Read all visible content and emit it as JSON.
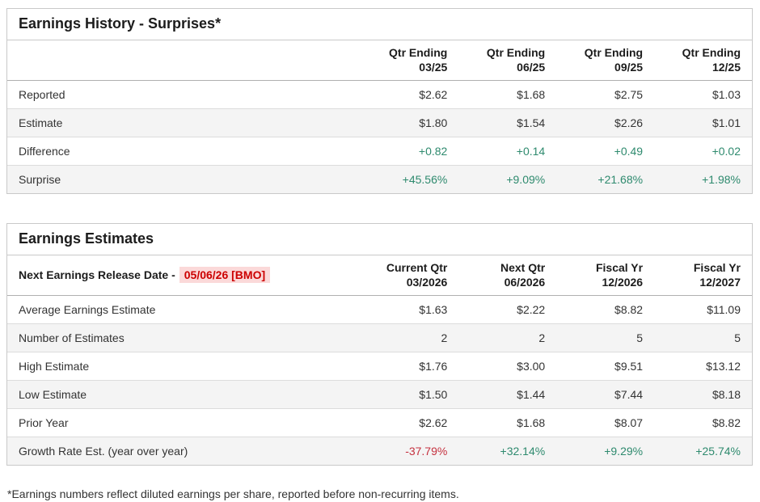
{
  "earnings_history": {
    "title": "Earnings History - Surprises*",
    "columns": [
      {
        "line1": "Qtr Ending",
        "line2": "03/25"
      },
      {
        "line1": "Qtr Ending",
        "line2": "06/25"
      },
      {
        "line1": "Qtr Ending",
        "line2": "09/25"
      },
      {
        "line1": "Qtr Ending",
        "line2": "12/25"
      }
    ],
    "rows": [
      {
        "label": "Reported",
        "values": [
          "$2.62",
          "$1.68",
          "$2.75",
          "$1.03"
        ]
      },
      {
        "label": "Estimate",
        "values": [
          "$1.80",
          "$1.54",
          "$2.26",
          "$1.01"
        ]
      },
      {
        "label": "Difference",
        "values": [
          "+0.82",
          "+0.14",
          "+0.49",
          "+0.02"
        ]
      },
      {
        "label": "Surprise",
        "values": [
          "+45.56%",
          "+9.09%",
          "+21.68%",
          "+1.98%"
        ]
      }
    ]
  },
  "earnings_estimates": {
    "title": "Earnings Estimates",
    "release_date_label": "Next Earnings Release Date -",
    "release_date_value": "05/06/26 [BMO]",
    "columns": [
      {
        "line1": "Current Qtr",
        "line2": "03/2026"
      },
      {
        "line1": "Next Qtr",
        "line2": "06/2026"
      },
      {
        "line1": "Fiscal Yr",
        "line2": "12/2026"
      },
      {
        "line1": "Fiscal Yr",
        "line2": "12/2027"
      }
    ],
    "rows": [
      {
        "label": "Average Earnings Estimate",
        "values": [
          "$1.63",
          "$2.22",
          "$8.82",
          "$11.09"
        ]
      },
      {
        "label": "Number of Estimates",
        "values": [
          "2",
          "2",
          "5",
          "5"
        ]
      },
      {
        "label": "High Estimate",
        "values": [
          "$1.76",
          "$3.00",
          "$9.51",
          "$13.12"
        ]
      },
      {
        "label": "Low Estimate",
        "values": [
          "$1.50",
          "$1.44",
          "$7.44",
          "$8.18"
        ]
      },
      {
        "label": "Prior Year",
        "values": [
          "$2.62",
          "$1.68",
          "$8.07",
          "$8.82"
        ]
      },
      {
        "label": "Growth Rate Est. (year over year)",
        "values": [
          "-37.79%",
          "+32.14%",
          "+9.29%",
          "+25.74%"
        ]
      }
    ]
  },
  "footnote": "*Earnings numbers reflect diluted earnings per share, reported before non-recurring items.",
  "colors": {
    "positive": "#2e8a6e",
    "negative": "#c5313f",
    "release_date_text": "#cc0000",
    "release_date_bg": "#fbd9d9",
    "border": "#c9c9c9",
    "row_stripe": "#f4f4f4"
  }
}
